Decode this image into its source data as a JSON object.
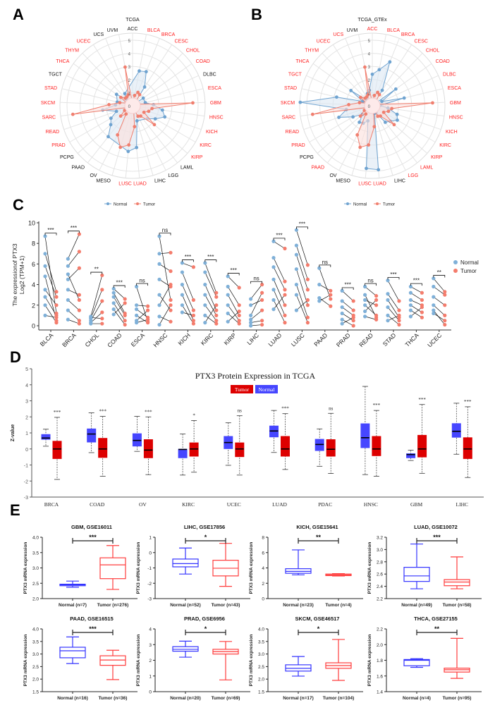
{
  "panel_letters": [
    "A",
    "B",
    "C",
    "D",
    "E"
  ],
  "colors": {
    "radar_normal": "#6fa3d0",
    "radar_normal_fill": "#dce8f3",
    "radar_tumor": "#f07f6f",
    "radar_tumor_fill": "#fbe0dc",
    "highlight_label": "#ff2020",
    "c_normal": "#7fb0d8",
    "c_tumor": "#f47c6c",
    "d_tumor": "#dd0000",
    "d_normal": "#4646ff",
    "e_normal": "#3434ff",
    "e_tumor": "#ff3c3c"
  },
  "chart_data": [
    {
      "type": "radar",
      "title": "TCGA",
      "range": [
        0,
        5
      ],
      "ticks": [
        "0",
        "1",
        "2",
        "3",
        "4",
        "5"
      ],
      "categories": [
        "ACC",
        "BLCA",
        "BRCA",
        "CESC",
        "CHOL",
        "COAD",
        "DLBC",
        "ESCA",
        "GBM",
        "HNSC",
        "KICH",
        "KIRC",
        "KIRP",
        "LAML",
        "LGG",
        "LIHC",
        "LUAD",
        "LUSC",
        "MESO",
        "OV",
        "PAAD",
        "PCPG",
        "PRAD",
        "READ",
        "SARC",
        "SKCM",
        "STAD",
        "TGCT",
        "THCA",
        "THYM",
        "UCEC",
        "UCS",
        "UVM"
      ],
      "highlighted": [
        "BLCA",
        "BRCA",
        "CESC",
        "CHOL",
        "COAD",
        "ESCA",
        "GBM",
        "HNSC",
        "KICH",
        "KIRC",
        "KIRP",
        "LUAD",
        "LUSC",
        "PRAD",
        "READ",
        "SARC",
        "SKCM",
        "STAD",
        "THCA",
        "THYM",
        "UCEC"
      ],
      "series": [
        {
          "name": "Normal",
          "values": [
            null,
            2.7,
            2.8,
            1.7,
            0.2,
            1.0,
            null,
            1.0,
            1.6,
            2.3,
            2.6,
            2.0,
            1.5,
            null,
            null,
            1.2,
            3.2,
            3.5,
            null,
            null,
            3.0,
            2.2,
            1.9,
            1.3,
            2.3,
            1.3,
            1.2,
            null,
            1.5,
            0.7,
            1.1,
            null,
            null
          ]
        },
        {
          "name": "Tumor",
          "values": [
            0.2,
            0.8,
            1.1,
            1.0,
            0.3,
            0.4,
            0.4,
            0.5,
            4.6,
            1.5,
            1.3,
            1.0,
            2.2,
            1.0,
            0.9,
            0.3,
            1.6,
            3.0,
            3.3,
            2.5,
            0.8,
            1.2,
            0.7,
            0.4,
            4.6,
            1.8,
            1.0,
            0.5,
            1.1,
            0.8,
            0.8,
            0.9,
            3.0
          ]
        }
      ],
      "legend": [
        "Normal",
        "Tumor"
      ]
    },
    {
      "type": "radar",
      "title": "TCGA_GTEx",
      "range": [
        0,
        5
      ],
      "ticks": [
        "0",
        "1",
        "2",
        "3",
        "4",
        "5"
      ],
      "categories": [
        "ACC",
        "BLCA",
        "BRCA",
        "CESC",
        "CHOL",
        "COAD",
        "DLBC",
        "ESCA",
        "GBM",
        "HNSC",
        "KICH",
        "KIRC",
        "KIRP",
        "LAML",
        "LGG",
        "LIHC",
        "LUAD",
        "LUSC",
        "MESO",
        "OV",
        "PAAD",
        "PCPG",
        "PRAD",
        "READ",
        "SARC",
        "SKCM",
        "STAD",
        "TGCT",
        "THCA",
        "THYM",
        "UCEC",
        "UCS",
        "UVM"
      ],
      "highlighted": [
        "ACC",
        "BLCA",
        "BRCA",
        "CESC",
        "CHOL",
        "COAD",
        "DLBC",
        "ESCA",
        "GBM",
        "HNSC",
        "KICH",
        "KIRC",
        "KIRP",
        "LAML",
        "LGG",
        "LUAD",
        "LUSC",
        "PAAD",
        "PRAD",
        "READ",
        "SARC",
        "SKCM",
        "STAD",
        "TGCT",
        "THCA",
        "THYM",
        "UCEC",
        "UCS"
      ],
      "series": [
        {
          "name": "Normal",
          "values": [
            2.4,
            2.8,
            3.6,
            1.4,
            0.1,
            2.2,
            0.8,
            2.5,
            0.6,
            1.2,
            2.0,
            2.2,
            1.8,
            1.6,
            0.6,
            0.6,
            4.9,
            4.8,
            1.2,
            1.5,
            1.6,
            1.0,
            1.7,
            2.7,
            2.0,
            5.5,
            2.8,
            0.8,
            2.0,
            0.6,
            0.4,
            1.0,
            1.2
          ]
        },
        {
          "name": "Tumor",
          "values": [
            0.2,
            0.8,
            1.1,
            1.0,
            0.3,
            0.4,
            0.4,
            0.5,
            4.6,
            1.5,
            1.3,
            1.0,
            2.2,
            1.0,
            0.9,
            0.3,
            1.6,
            3.0,
            3.3,
            2.5,
            0.8,
            1.2,
            0.7,
            0.4,
            4.6,
            1.8,
            1.0,
            0.5,
            1.1,
            0.8,
            0.8,
            0.9,
            3.0
          ]
        }
      ],
      "legend": [
        "Normal",
        "Tumor"
      ]
    },
    {
      "type": "scatter",
      "ylabel": [
        "The expressionof PTX3",
        "Log2 (TPM+1)"
      ],
      "ylim": [
        0,
        10
      ],
      "yticks": [
        "0",
        "2",
        "4",
        "6",
        "8",
        "10"
      ],
      "legend": [
        "Normal",
        "Tumor"
      ],
      "categories": [
        "BLCA",
        "BRCA",
        "CHOL",
        "COAD",
        "ESCA",
        "HNSC",
        "KICH",
        "KIRC",
        "KIRP",
        "LIHC",
        "LUAD",
        "LUSC",
        "PAAD",
        "PRAD",
        "READ",
        "STAD",
        "THCA",
        "UCEC"
      ],
      "significance": [
        "***",
        "***",
        "**",
        "***",
        "ns",
        "ns",
        "***",
        "***",
        "***",
        "ns",
        "***",
        "***",
        "ns",
        "***",
        "ns",
        "***",
        "***",
        "**"
      ],
      "normal": [
        [
          8.7,
          7.0,
          5.8,
          4.8,
          3.5,
          2.8,
          2.0,
          1.0
        ],
        [
          6.5,
          5.8,
          4.5,
          3.5,
          2.5,
          1.5,
          0.6,
          5.0
        ],
        [
          0.9,
          0.7,
          0.5,
          0.3,
          0.2,
          0.8
        ],
        [
          3.6,
          3.2,
          2.8,
          2.2,
          1.6,
          1.1
        ],
        [
          3.8,
          2.0,
          1.6,
          1.0,
          0.5,
          0.3
        ],
        [
          8.7,
          7.0,
          6.0,
          4.5,
          3.0,
          2.0,
          0.9,
          0.1
        ],
        [
          6.1,
          5.2,
          4.0,
          3.0,
          2.0,
          1.3
        ],
        [
          6.1,
          5.2,
          4.0,
          3.0,
          2.0,
          1.0,
          0.3
        ],
        [
          4.8,
          3.8,
          3.0,
          2.0,
          1.2,
          0.4
        ],
        [
          2.6,
          2.0,
          1.0,
          0.6,
          0.3,
          0.0
        ],
        [
          8.2,
          6.6,
          5.7,
          4.5,
          3.5,
          2.5,
          1.6
        ],
        [
          9.3,
          7.8,
          6.9,
          5.5,
          4.0,
          3.0,
          1.5
        ],
        [
          5.6,
          4.0,
          2.7,
          2.4
        ],
        [
          3.4,
          2.4,
          1.8,
          1.2,
          0.6,
          0.2
        ],
        [
          3.8,
          3.0,
          2.5,
          2.0,
          1.4,
          0.9
        ],
        [
          4.4,
          3.1,
          2.5,
          1.8,
          1.0,
          0.5
        ],
        [
          3.8,
          3.2,
          2.5,
          2.0,
          1.5,
          0.9
        ],
        [
          4.6,
          3.8,
          2.8,
          2.0,
          1.5,
          1.2
        ]
      ],
      "tumor": [
        [
          1.2,
          3.3,
          2.8,
          0.5,
          2.0,
          1.0,
          0.3,
          0.8
        ],
        [
          8.9,
          7.2,
          5.6,
          3.0,
          1.5,
          0.5,
          0.2,
          2.5
        ],
        [
          4.9,
          3.5,
          2.4,
          1.3,
          0.2,
          0.7
        ],
        [
          2.6,
          1.2,
          1.0,
          0.5,
          0.1,
          2.2
        ],
        [
          0.4,
          1.9,
          0.8,
          0.3,
          1.5,
          0.6
        ],
        [
          2.5,
          7.1,
          5.3,
          3.8,
          1.5,
          4.0,
          0.4,
          2.0
        ],
        [
          5.7,
          2.5,
          1.5,
          0.5,
          0.2,
          1.0
        ],
        [
          3.2,
          2.8,
          1.5,
          1.0,
          0.5,
          0.2,
          2.0
        ],
        [
          3.7,
          2.0,
          1.0,
          0.5,
          0.2,
          1.4
        ],
        [
          4.0,
          2.5,
          3.2,
          1.5,
          0.5,
          0.1
        ],
        [
          7.5,
          4.3,
          3.5,
          2.0,
          1.0,
          0.3,
          3.0
        ],
        [
          5.9,
          4.5,
          3.5,
          2.0,
          0.8,
          0.3,
          2.5
        ],
        [
          2.6,
          3.4,
          1.9,
          3.0
        ],
        [
          2.4,
          1.5,
          1.0,
          0.5,
          0.0,
          0.8
        ],
        [
          2.9,
          0.8,
          2.0,
          1.0,
          2.5,
          0.6
        ],
        [
          2.4,
          1.5,
          0.8,
          0.5,
          0.1,
          1.0
        ],
        [
          3.2,
          2.5,
          2.0,
          1.3,
          0.8,
          1.8
        ],
        [
          3.3,
          3.0,
          2.0,
          1.0,
          0.1,
          0.5
        ]
      ]
    },
    {
      "type": "box",
      "title": "PTX3 Protein Expression in TCGA",
      "ylabel": "Z-value",
      "ylim": [
        -3,
        5
      ],
      "yticks": [
        "-3",
        "-2",
        "-1",
        "0",
        "1",
        "2",
        "3",
        "4",
        "5"
      ],
      "legend": [
        "Tumor",
        "Normal"
      ],
      "categories": [
        "BRCA",
        "COAD",
        "OV",
        "KIRC",
        "UCEC",
        "LUAD",
        "PDAC",
        "HNSC",
        "GBM",
        "LIHC"
      ],
      "significance": [
        "***",
        "***",
        "***",
        "*",
        "ns",
        "***",
        "ns",
        "***",
        "***",
        "***"
      ],
      "normal": [
        {
          "min": 0.17,
          "q1": 0.6,
          "median": 0.68,
          "q3": 0.9,
          "max": 1.23
        },
        {
          "min": -0.23,
          "q1": 0.43,
          "median": 0.93,
          "q3": 1.25,
          "max": 2.25
        },
        {
          "min": -0.15,
          "q1": 0.18,
          "median": 0.53,
          "q3": 0.95,
          "max": 2.03
        },
        {
          "min": -1.63,
          "q1": -0.55,
          "median": -0.03,
          "q3": -0.02,
          "max": 0.93
        },
        {
          "min": -1.02,
          "q1": 0.02,
          "median": 0.4,
          "q3": 0.78,
          "max": 1.63
        },
        {
          "min": -0.22,
          "q1": 0.75,
          "median": 1.12,
          "q3": 1.43,
          "max": 2.4
        },
        {
          "min": -1.08,
          "q1": -0.1,
          "median": 0.28,
          "q3": 0.6,
          "max": 1.25
        },
        {
          "min": -1.6,
          "q1": 0.08,
          "median": 0.7,
          "q3": 1.57,
          "max": 3.9
        },
        {
          "min": -0.72,
          "q1": -0.55,
          "median": -0.35,
          "q3": -0.3,
          "max": -0.08
        },
        {
          "min": -0.33,
          "q1": 0.73,
          "median": 1.1,
          "q3": 1.58,
          "max": 2.85
        }
      ],
      "tumor": [
        {
          "min": -1.9,
          "q1": -0.6,
          "median": 0,
          "q3": 0.48,
          "max": 1.97
        },
        {
          "min": -1.7,
          "q1": -0.53,
          "median": 0,
          "q3": 0.66,
          "max": 2.03
        },
        {
          "min": -1.6,
          "q1": -0.55,
          "median": -0.07,
          "q3": 0.58,
          "max": 2.0
        },
        {
          "min": -1.45,
          "q1": -0.45,
          "median": 0,
          "q3": 0.38,
          "max": 1.77
        },
        {
          "min": -1.63,
          "q1": -0.48,
          "median": 0,
          "q3": 0.38,
          "max": 2.07
        },
        {
          "min": -1.28,
          "q1": -0.45,
          "median": 0,
          "q3": 0.78,
          "max": 2.2
        },
        {
          "min": -1.53,
          "q1": -0.45,
          "median": -0.02,
          "q3": 0.58,
          "max": 2.22
        },
        {
          "min": -1.7,
          "q1": -0.42,
          "median": 0,
          "q3": 0.78,
          "max": 2.4
        },
        {
          "min": -1.52,
          "q1": -0.5,
          "median": 0,
          "q3": 0.85,
          "max": 2.77
        },
        {
          "min": -1.78,
          "q1": -0.6,
          "median": 0,
          "q3": 0.7,
          "max": 2.63
        }
      ]
    },
    {
      "type": "box",
      "ylabel": "PTX3 mRNA expression",
      "panels": [
        {
          "title": "GBM, GSE16011",
          "ylim": [
            2.0,
            4.0
          ],
          "yticks": [
            "2.0",
            "2.5",
            "3.0",
            "3.5",
            "4.0"
          ],
          "xlabels": [
            "Normal (n=7)",
            "Tumor (n=276)"
          ],
          "significance": "***",
          "normal": {
            "min": 2.37,
            "q1": 2.42,
            "median": 2.45,
            "q3": 2.47,
            "max": 2.57
          },
          "tumor": {
            "min": 2.3,
            "q1": 2.65,
            "median": 3.1,
            "q3": 3.33,
            "max": 3.73
          }
        },
        {
          "title": "LIHC, GSE17856",
          "ylim": [
            -3,
            1
          ],
          "yticks": [
            "-3",
            "-2",
            "-1",
            "0",
            "1"
          ],
          "xlabels": [
            "Normal (n=52)",
            "Tumor (n=43)"
          ],
          "significance": "*",
          "normal": {
            "min": -1.4,
            "q1": -0.93,
            "median": -0.72,
            "q3": -0.42,
            "max": 0.3
          },
          "tumor": {
            "min": -2.2,
            "q1": -1.52,
            "median": -1.02,
            "q3": -0.5,
            "max": 0.6
          }
        },
        {
          "title": "KICH, GSE15641",
          "ylim": [
            0,
            8
          ],
          "yticks": [
            "0",
            "2",
            "4",
            "6",
            "8"
          ],
          "xlabels": [
            "Normal (n=23)",
            "Tumor (n=4)"
          ],
          "significance": "**",
          "normal": {
            "min": 3.1,
            "q1": 3.3,
            "median": 3.55,
            "q3": 3.9,
            "max": 6.35
          },
          "tumor": {
            "min": 2.95,
            "q1": 3.0,
            "median": 3.1,
            "q3": 3.2,
            "max": 3.25
          }
        },
        {
          "title": "LUAD, GSE10072",
          "ylim": [
            2.2,
            3.2
          ],
          "yticks": [
            "2.2",
            "2.4",
            "2.6",
            "2.8",
            "3.0",
            "3.2"
          ],
          "xlabels": [
            "Normal (n=49)",
            "Tumor (n=58)"
          ],
          "significance": "***",
          "normal": {
            "min": 2.36,
            "q1": 2.48,
            "median": 2.57,
            "q3": 2.71,
            "max": 3.09
          },
          "tumor": {
            "min": 2.36,
            "q1": 2.41,
            "median": 2.47,
            "q3": 2.51,
            "max": 2.88
          }
        },
        {
          "title": "PAAD, GSE16515",
          "ylim": [
            1.5,
            4.0
          ],
          "yticks": [
            "1.5",
            "2.0",
            "2.5",
            "3.0",
            "3.5",
            "4.0"
          ],
          "xlabels": [
            "Normal (n=16)",
            "Tumor (n=36)"
          ],
          "significance": "***",
          "normal": {
            "min": 2.62,
            "q1": 2.85,
            "median": 3.13,
            "q3": 3.27,
            "max": 3.68
          },
          "tumor": {
            "min": 1.98,
            "q1": 2.55,
            "median": 2.76,
            "q3": 2.93,
            "max": 3.15
          }
        },
        {
          "title": "PRAD, GSE6956",
          "ylim": [
            0,
            4
          ],
          "yticks": [
            "0",
            "1",
            "2",
            "3",
            "4"
          ],
          "xlabels": [
            "Normal (n=20)",
            "Tumor (n=69)"
          ],
          "significance": "*",
          "normal": {
            "min": 2.2,
            "q1": 2.58,
            "median": 2.7,
            "q3": 2.87,
            "max": 3.22
          },
          "tumor": {
            "min": 0.75,
            "q1": 2.4,
            "median": 2.55,
            "q3": 2.7,
            "max": 3.2
          }
        },
        {
          "title": "SKCM, GSE46517",
          "ylim": [
            1.5,
            4.0
          ],
          "yticks": [
            "1.5",
            "2.0",
            "2.5",
            "3.0",
            "3.5",
            "4.0"
          ],
          "xlabels": [
            "Normal (n=17)",
            "Tumor (n=104)"
          ],
          "significance": "*",
          "normal": {
            "min": 2.12,
            "q1": 2.32,
            "median": 2.43,
            "q3": 2.57,
            "max": 2.9
          },
          "tumor": {
            "min": 1.95,
            "q1": 2.43,
            "median": 2.54,
            "q3": 2.65,
            "max": 3.58
          }
        },
        {
          "title": "THCA, GSE27155",
          "ylim": [
            1.4,
            2.2
          ],
          "yticks": [
            "1.4",
            "1.6",
            "1.8",
            "2.0",
            "2.2"
          ],
          "xlabels": [
            "Normal (n=4)",
            "Tumor (n=95)"
          ],
          "significance": "**",
          "normal": {
            "min": 1.71,
            "q1": 1.73,
            "median": 1.8,
            "q3": 1.81,
            "max": 1.82
          },
          "tumor": {
            "min": 1.57,
            "q1": 1.65,
            "median": 1.68,
            "q3": 1.7,
            "max": 2.08
          }
        }
      ]
    }
  ]
}
